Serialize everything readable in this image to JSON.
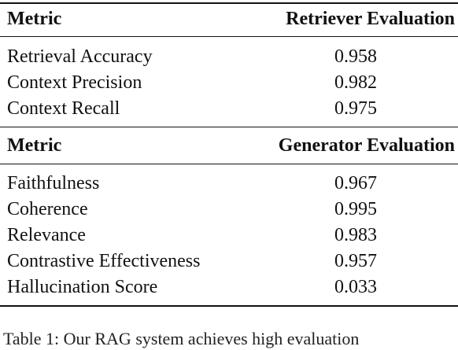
{
  "table": {
    "sections": [
      {
        "header": {
          "metric": "Metric",
          "column": "Retriever Evaluation"
        },
        "rows": [
          {
            "metric": "Retrieval Accuracy",
            "value": "0.958"
          },
          {
            "metric": "Context Precision",
            "value": "0.982"
          },
          {
            "metric": "Context Recall",
            "value": "0.975"
          }
        ]
      },
      {
        "header": {
          "metric": "Metric",
          "column": "Generator Evaluation"
        },
        "rows": [
          {
            "metric": "Faithfulness",
            "value": "0.967"
          },
          {
            "metric": "Coherence",
            "value": "0.995"
          },
          {
            "metric": "Relevance",
            "value": "0.983"
          },
          {
            "metric": "Contrastive Effectiveness",
            "value": "0.957"
          },
          {
            "metric": "Hallucination Score",
            "value": "0.033"
          }
        ]
      }
    ]
  },
  "caption": "Table 1: Our RAG system achieves high evaluation"
}
